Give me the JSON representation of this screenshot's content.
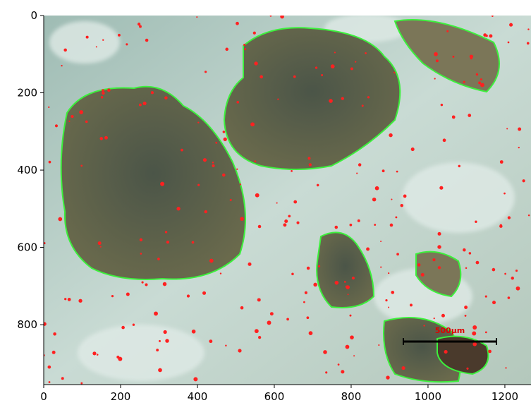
{
  "chart_data": {
    "type": "image",
    "xlim": [
      0,
      1268
    ],
    "ylim": [
      955,
      0
    ],
    "xticks": [
      0,
      200,
      400,
      600,
      800,
      1000,
      1200
    ],
    "yticks": [
      0,
      200,
      400,
      600,
      800
    ],
    "annotation": "500µm"
  }
}
